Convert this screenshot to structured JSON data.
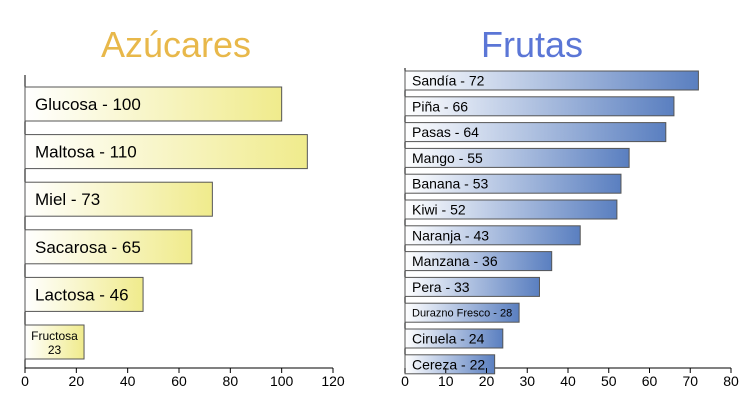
{
  "chart_data": [
    {
      "type": "bar",
      "orientation": "horizontal",
      "title": "Azúcares",
      "title_color": "#e8b84a",
      "categories": [
        "Glucosa",
        "Maltosa",
        "Miel",
        "Sacarosa",
        "Lactosa",
        "Fructosa"
      ],
      "values": [
        100,
        110,
        73,
        65,
        46,
        23
      ],
      "bar_labels": [
        "Glucosa - 100",
        "Maltosa - 110",
        "Miel - 73",
        "Sacarosa - 65",
        "Lactosa - 46",
        "Fructosa 23"
      ],
      "xlim": [
        0,
        120
      ],
      "xticks": [
        0,
        20,
        40,
        60,
        80,
        100,
        120
      ],
      "xlabel": "",
      "ylabel": "",
      "grid": false,
      "bar_color_start": "#ffffff",
      "bar_color_end": "#f0eb8c"
    },
    {
      "type": "bar",
      "orientation": "horizontal",
      "title": "Frutas",
      "title_color": "#5b76d6",
      "categories": [
        "Sandía",
        "Piña",
        "Pasas",
        "Mango",
        "Banana",
        "Kiwi",
        "Naranja",
        "Manzana",
        "Pera",
        "Durazno Fresco",
        "Ciruela",
        "Cereza"
      ],
      "values": [
        72,
        66,
        64,
        55,
        53,
        52,
        43,
        36,
        33,
        28,
        24,
        22
      ],
      "bar_labels": [
        "Sandía - 72",
        "Piña - 66",
        "Pasas - 64",
        "Mango - 55",
        "Banana - 53",
        "Kiwi - 52",
        "Naranja - 43",
        "Manzana - 36",
        "Pera - 33",
        "Durazno Fresco - 28",
        "Ciruela - 24",
        "Cereza - 22"
      ],
      "xlim": [
        0,
        80
      ],
      "xticks": [
        0,
        10,
        20,
        30,
        40,
        50,
        60,
        70,
        80
      ],
      "xlabel": "",
      "ylabel": "",
      "grid": false,
      "bar_color_start": "#ffffff",
      "bar_color_end": "#5a7fc0"
    }
  ]
}
